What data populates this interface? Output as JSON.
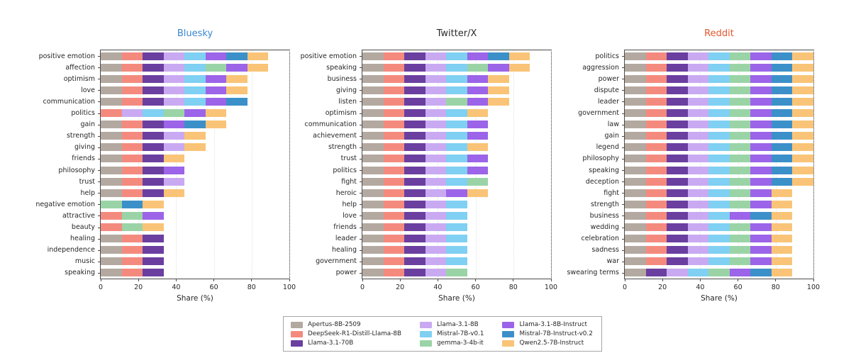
{
  "figure": {
    "xlabel": "Share (%)",
    "xticks": [
      0,
      20,
      40,
      60,
      80,
      100
    ],
    "segment_share_pct": 11.1
  },
  "legend": {
    "entries": [
      {
        "label": "Apertus-8B-2509",
        "color": "#b3a9a0"
      },
      {
        "label": "DeepSeek-R1-Distill-Llama-8B",
        "color": "#f48a7e"
      },
      {
        "label": "Llama-3.1-70B",
        "color": "#6a3fa0"
      },
      {
        "label": "Llama-3.1-8B",
        "color": "#c9aaf2"
      },
      {
        "label": "Mistral-7B-v0.1",
        "color": "#7fd0f2"
      },
      {
        "label": "gemma-3-4b-it",
        "color": "#9ad4a6"
      },
      {
        "label": "Llama-3.1-8B-Instruct",
        "color": "#9c64e8"
      },
      {
        "label": "Mistral-7B-Instruct-v0.2",
        "color": "#3c90c9"
      },
      {
        "label": "Qwen2.5-7B-Instruct",
        "color": "#f9c477"
      }
    ]
  },
  "chart_data": [
    {
      "type": "bar",
      "orientation": "horizontal",
      "stacked": true,
      "title": "Bluesky",
      "title_color": "#3a87cf",
      "xlabel": "Share (%)",
      "xlim": [
        0,
        100
      ],
      "xticks": [
        0,
        20,
        40,
        60,
        80,
        100
      ],
      "categories": [
        "positive emotion",
        "affection",
        "optimism",
        "love",
        "communication",
        "politics",
        "gain",
        "strength",
        "giving",
        "friends",
        "philosophy",
        "trust",
        "help",
        "negative emotion",
        "attractive",
        "beauty",
        "healing",
        "independence",
        "music",
        "speaking"
      ],
      "series": [
        {
          "name": "Apertus-8B-2509",
          "color": "#b3a9a0",
          "values": [
            11.1,
            11.1,
            11.1,
            11.1,
            11.1,
            0,
            11.1,
            11.1,
            11.1,
            11.1,
            11.1,
            11.1,
            11.1,
            0,
            0,
            0,
            11.1,
            11.1,
            11.1,
            11.1
          ]
        },
        {
          "name": "DeepSeek-R1-Distill-Llama-8B",
          "color": "#f48a7e",
          "values": [
            11.1,
            11.1,
            11.1,
            11.1,
            11.1,
            11.1,
            11.1,
            11.1,
            11.1,
            11.1,
            11.1,
            11.1,
            11.1,
            0,
            11.1,
            11.1,
            11.1,
            11.1,
            11.1,
            11.1
          ]
        },
        {
          "name": "Llama-3.1-70B",
          "color": "#6a3fa0",
          "values": [
            11.1,
            11.1,
            11.1,
            11.1,
            11.1,
            0,
            11.1,
            11.1,
            11.1,
            11.1,
            11.1,
            11.1,
            11.1,
            0,
            0,
            0,
            11.1,
            11.1,
            11.1,
            11.1
          ]
        },
        {
          "name": "Llama-3.1-8B",
          "color": "#c9aaf2",
          "values": [
            11.1,
            11.1,
            11.1,
            11.1,
            11.1,
            11.1,
            0,
            11.1,
            11.1,
            0,
            0,
            11.1,
            0,
            0,
            0,
            0,
            0,
            0,
            0,
            0
          ]
        },
        {
          "name": "Mistral-7B-v0.1",
          "color": "#7fd0f2",
          "values": [
            11.1,
            11.1,
            11.1,
            11.1,
            11.1,
            11.1,
            0,
            0,
            0,
            0,
            0,
            0,
            0,
            0,
            0,
            0,
            0,
            0,
            0,
            0
          ]
        },
        {
          "name": "gemma-3-4b-it",
          "color": "#9ad4a6",
          "values": [
            0,
            11.1,
            0,
            0,
            0,
            11.1,
            0,
            0,
            0,
            0,
            0,
            0,
            0,
            11.1,
            11.1,
            11.1,
            0,
            0,
            0,
            0
          ]
        },
        {
          "name": "Llama-3.1-8B-Instruct",
          "color": "#9c64e8",
          "values": [
            11.1,
            11.1,
            11.1,
            11.1,
            11.1,
            11.1,
            11.1,
            0,
            0,
            0,
            11.1,
            0,
            0,
            0,
            11.1,
            0,
            0,
            0,
            0,
            0
          ]
        },
        {
          "name": "Mistral-7B-Instruct-v0.2",
          "color": "#3c90c9",
          "values": [
            11.1,
            0,
            0,
            0,
            11.1,
            0,
            11.1,
            0,
            0,
            0,
            0,
            0,
            0,
            11.1,
            0,
            0,
            0,
            0,
            0,
            0
          ]
        },
        {
          "name": "Qwen2.5-7B-Instruct",
          "color": "#f9c477",
          "values": [
            11.1,
            11.1,
            11.1,
            11.1,
            0,
            11.1,
            11.1,
            11.1,
            11.1,
            11.1,
            0,
            0,
            11.1,
            11.1,
            0,
            11.1,
            0,
            0,
            0,
            0
          ]
        }
      ]
    },
    {
      "type": "bar",
      "orientation": "horizontal",
      "stacked": true,
      "title": "Twitter/X",
      "title_color": "#2b2b2b",
      "xlabel": "Share (%)",
      "xlim": [
        0,
        100
      ],
      "xticks": [
        0,
        20,
        40,
        60,
        80,
        100
      ],
      "categories": [
        "positive emotion",
        "speaking",
        "business",
        "giving",
        "listen",
        "optimism",
        "communication",
        "achievement",
        "strength",
        "trust",
        "politics",
        "fight",
        "heroic",
        "help",
        "love",
        "friends",
        "leader",
        "healing",
        "government",
        "power"
      ],
      "series": [
        {
          "name": "Apertus-8B-2509",
          "color": "#b3a9a0",
          "values": [
            11.1,
            11.1,
            11.1,
            11.1,
            11.1,
            11.1,
            11.1,
            11.1,
            11.1,
            11.1,
            11.1,
            11.1,
            11.1,
            11.1,
            11.1,
            11.1,
            11.1,
            11.1,
            11.1,
            11.1
          ]
        },
        {
          "name": "DeepSeek-R1-Distill-Llama-8B",
          "color": "#f48a7e",
          "values": [
            11.1,
            11.1,
            11.1,
            11.1,
            11.1,
            11.1,
            11.1,
            11.1,
            11.1,
            11.1,
            11.1,
            11.1,
            11.1,
            11.1,
            11.1,
            11.1,
            11.1,
            11.1,
            11.1,
            11.1
          ]
        },
        {
          "name": "Llama-3.1-70B",
          "color": "#6a3fa0",
          "values": [
            11.1,
            11.1,
            11.1,
            11.1,
            11.1,
            11.1,
            11.1,
            11.1,
            11.1,
            11.1,
            11.1,
            11.1,
            11.1,
            11.1,
            11.1,
            11.1,
            11.1,
            11.1,
            11.1,
            11.1
          ]
        },
        {
          "name": "Llama-3.1-8B",
          "color": "#c9aaf2",
          "values": [
            11.1,
            11.1,
            11.1,
            11.1,
            11.1,
            11.1,
            11.1,
            11.1,
            11.1,
            11.1,
            11.1,
            11.1,
            11.1,
            11.1,
            11.1,
            11.1,
            11.1,
            11.1,
            11.1,
            11.1
          ]
        },
        {
          "name": "Mistral-7B-v0.1",
          "color": "#7fd0f2",
          "values": [
            11.1,
            11.1,
            11.1,
            11.1,
            0,
            11.1,
            11.1,
            11.1,
            11.1,
            11.1,
            11.1,
            11.1,
            0,
            11.1,
            11.1,
            11.1,
            11.1,
            11.1,
            11.1,
            0
          ]
        },
        {
          "name": "gemma-3-4b-it",
          "color": "#9ad4a6",
          "values": [
            0,
            11.1,
            0,
            0,
            11.1,
            0,
            0,
            0,
            0,
            0,
            0,
            11.1,
            0,
            0,
            0,
            0,
            0,
            0,
            0,
            11.1
          ]
        },
        {
          "name": "Llama-3.1-8B-Instruct",
          "color": "#9c64e8",
          "values": [
            11.1,
            11.1,
            11.1,
            11.1,
            11.1,
            0,
            11.1,
            11.1,
            0,
            11.1,
            11.1,
            0,
            11.1,
            0,
            0,
            0,
            0,
            0,
            0,
            0
          ]
        },
        {
          "name": "Mistral-7B-Instruct-v0.2",
          "color": "#3c90c9",
          "values": [
            11.1,
            0,
            0,
            0,
            0,
            0,
            0,
            0,
            0,
            0,
            0,
            0,
            0,
            0,
            0,
            0,
            0,
            0,
            0,
            0
          ]
        },
        {
          "name": "Qwen2.5-7B-Instruct",
          "color": "#f9c477",
          "values": [
            11.1,
            11.1,
            11.1,
            11.1,
            11.1,
            11.1,
            0,
            0,
            11.1,
            0,
            0,
            0,
            11.1,
            0,
            0,
            0,
            0,
            0,
            0,
            0
          ]
        }
      ]
    },
    {
      "type": "bar",
      "orientation": "horizontal",
      "stacked": true,
      "title": "Reddit",
      "title_color": "#e4572e",
      "xlabel": "Share (%)",
      "xlim": [
        0,
        100
      ],
      "xticks": [
        0,
        20,
        40,
        60,
        80,
        100
      ],
      "categories": [
        "politics",
        "aggression",
        "power",
        "dispute",
        "leader",
        "government",
        "law",
        "gain",
        "legend",
        "philosophy",
        "speaking",
        "deception",
        "fight",
        "strength",
        "business",
        "wedding",
        "celebration",
        "sadness",
        "war",
        "swearing terms"
      ],
      "series": [
        {
          "name": "Apertus-8B-2509",
          "color": "#b3a9a0",
          "values": [
            11.1,
            11.1,
            11.1,
            11.1,
            11.1,
            11.1,
            11.1,
            11.1,
            11.1,
            11.1,
            11.1,
            11.1,
            11.1,
            11.1,
            11.1,
            11.1,
            11.1,
            11.1,
            11.1,
            11.1
          ]
        },
        {
          "name": "DeepSeek-R1-Distill-Llama-8B",
          "color": "#f48a7e",
          "values": [
            11.1,
            11.1,
            11.1,
            11.1,
            11.1,
            11.1,
            11.1,
            11.1,
            11.1,
            11.1,
            11.1,
            11.1,
            11.1,
            11.1,
            11.1,
            11.1,
            11.1,
            11.1,
            11.1,
            0
          ]
        },
        {
          "name": "Llama-3.1-70B",
          "color": "#6a3fa0",
          "values": [
            11.1,
            11.1,
            11.1,
            11.1,
            11.1,
            11.1,
            11.1,
            11.1,
            11.1,
            11.1,
            11.1,
            11.1,
            11.1,
            11.1,
            11.1,
            11.1,
            11.1,
            11.1,
            11.1,
            11.1
          ]
        },
        {
          "name": "Llama-3.1-8B",
          "color": "#c9aaf2",
          "values": [
            11.1,
            11.1,
            11.1,
            11.1,
            11.1,
            11.1,
            11.1,
            11.1,
            11.1,
            11.1,
            11.1,
            11.1,
            11.1,
            11.1,
            11.1,
            11.1,
            11.1,
            11.1,
            11.1,
            11.1
          ]
        },
        {
          "name": "Mistral-7B-v0.1",
          "color": "#7fd0f2",
          "values": [
            11.1,
            11.1,
            11.1,
            11.1,
            11.1,
            11.1,
            11.1,
            11.1,
            11.1,
            11.1,
            11.1,
            11.1,
            11.1,
            11.1,
            11.1,
            11.1,
            11.1,
            11.1,
            11.1,
            11.1
          ]
        },
        {
          "name": "gemma-3-4b-it",
          "color": "#9ad4a6",
          "values": [
            11.1,
            11.1,
            11.1,
            11.1,
            11.1,
            11.1,
            11.1,
            11.1,
            11.1,
            11.1,
            11.1,
            11.1,
            11.1,
            11.1,
            0,
            11.1,
            11.1,
            11.1,
            11.1,
            11.1
          ]
        },
        {
          "name": "Llama-3.1-8B-Instruct",
          "color": "#9c64e8",
          "values": [
            11.1,
            11.1,
            11.1,
            11.1,
            11.1,
            11.1,
            11.1,
            11.1,
            11.1,
            11.1,
            11.1,
            11.1,
            11.1,
            11.1,
            11.1,
            11.1,
            11.1,
            11.1,
            11.1,
            11.1
          ]
        },
        {
          "name": "Mistral-7B-Instruct-v0.2",
          "color": "#3c90c9",
          "values": [
            11.1,
            11.1,
            11.1,
            11.1,
            11.1,
            11.1,
            11.1,
            11.1,
            11.1,
            11.1,
            11.1,
            11.1,
            0,
            0,
            11.1,
            0,
            0,
            0,
            0,
            11.1
          ]
        },
        {
          "name": "Qwen2.5-7B-Instruct",
          "color": "#f9c477",
          "values": [
            11.1,
            11.1,
            11.1,
            11.1,
            11.1,
            11.1,
            11.1,
            11.1,
            11.1,
            11.1,
            11.1,
            11.1,
            11.1,
            11.1,
            11.1,
            11.1,
            11.1,
            11.1,
            11.1,
            11.1
          ]
        }
      ]
    }
  ]
}
